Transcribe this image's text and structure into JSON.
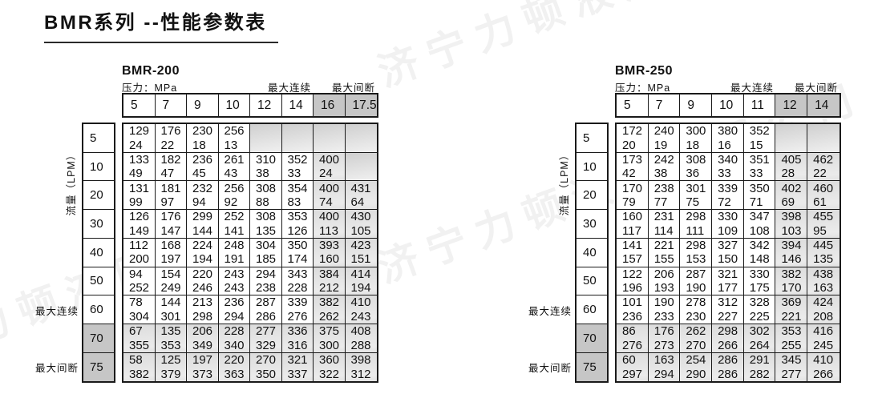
{
  "page_title": "BMR系列 --性能参数表",
  "watermark_text": "济宁力顿液压有限公司",
  "colors": {
    "border": "#1a1a1a",
    "shaded_header": "#c6c6c6",
    "shaded_cell_top": "#cfcfcf",
    "shaded_cell_bottom": "#ededed"
  },
  "tables": [
    {
      "model": "BMR-200",
      "pressure_label": "压力：MPa",
      "max_continuous_label": "最大连续",
      "max_intermittent_label": "最大间断",
      "flow_axis_label": "流量（LPM）",
      "side_max_continuous_label": "最大连续",
      "side_max_intermittent_label": "最大间断",
      "pressure_columns": [
        "5",
        "7",
        "9",
        "10",
        "12",
        "14",
        "16",
        "17.5"
      ],
      "shaded_column_indices": [
        6,
        7
      ],
      "flow_rows": [
        "5",
        "10",
        "20",
        "30",
        "40",
        "50",
        "60",
        "70",
        "75"
      ],
      "shaded_row_indices": [
        7,
        8
      ],
      "cells": [
        [
          [
            "129",
            "24"
          ],
          [
            "176",
            "22"
          ],
          [
            "230",
            "18"
          ],
          [
            "256",
            "13"
          ],
          null,
          null,
          null,
          null
        ],
        [
          [
            "133",
            "49"
          ],
          [
            "182",
            "47"
          ],
          [
            "236",
            "45"
          ],
          [
            "261",
            "43"
          ],
          [
            "310",
            "38"
          ],
          [
            "352",
            "33"
          ],
          [
            "400",
            "24"
          ],
          null
        ],
        [
          [
            "131",
            "99"
          ],
          [
            "181",
            "97"
          ],
          [
            "232",
            "94"
          ],
          [
            "256",
            "92"
          ],
          [
            "308",
            "88"
          ],
          [
            "354",
            "83"
          ],
          [
            "400",
            "74"
          ],
          [
            "431",
            "64"
          ]
        ],
        [
          [
            "126",
            "149"
          ],
          [
            "176",
            "147"
          ],
          [
            "299",
            "144"
          ],
          [
            "252",
            "141"
          ],
          [
            "308",
            "135"
          ],
          [
            "353",
            "126"
          ],
          [
            "400",
            "113"
          ],
          [
            "430",
            "105"
          ]
        ],
        [
          [
            "112",
            "200"
          ],
          [
            "168",
            "197"
          ],
          [
            "224",
            "194"
          ],
          [
            "248",
            "191"
          ],
          [
            "304",
            "185"
          ],
          [
            "350",
            "174"
          ],
          [
            "393",
            "160"
          ],
          [
            "423",
            "151"
          ]
        ],
        [
          [
            "94",
            "252"
          ],
          [
            "154",
            "249"
          ],
          [
            "220",
            "246"
          ],
          [
            "243",
            "243"
          ],
          [
            "294",
            "238"
          ],
          [
            "343",
            "228"
          ],
          [
            "384",
            "212"
          ],
          [
            "414",
            "194"
          ]
        ],
        [
          [
            "78",
            "304"
          ],
          [
            "144",
            "301"
          ],
          [
            "213",
            "298"
          ],
          [
            "236",
            "294"
          ],
          [
            "287",
            "286"
          ],
          [
            "339",
            "276"
          ],
          [
            "382",
            "262"
          ],
          [
            "410",
            "243"
          ]
        ],
        [
          [
            "67",
            "355"
          ],
          [
            "135",
            "353"
          ],
          [
            "206",
            "349"
          ],
          [
            "228",
            "340"
          ],
          [
            "277",
            "329"
          ],
          [
            "336",
            "316"
          ],
          [
            "375",
            "300"
          ],
          [
            "408",
            "288"
          ]
        ],
        [
          [
            "58",
            "382"
          ],
          [
            "125",
            "379"
          ],
          [
            "197",
            "373"
          ],
          [
            "220",
            "363"
          ],
          [
            "270",
            "350"
          ],
          [
            "321",
            "337"
          ],
          [
            "360",
            "322"
          ],
          [
            "398",
            "312"
          ]
        ]
      ]
    },
    {
      "model": "BMR-250",
      "pressure_label": "压力：MPa",
      "max_continuous_label": "最大连续",
      "max_intermittent_label": "最大间断",
      "flow_axis_label": "流量（LPM）",
      "side_max_continuous_label": "最大连续",
      "side_max_intermittent_label": "最大间断",
      "pressure_columns": [
        "5",
        "7",
        "9",
        "10",
        "11",
        "12",
        "14"
      ],
      "shaded_column_indices": [
        5,
        6
      ],
      "flow_rows": [
        "5",
        "10",
        "20",
        "30",
        "40",
        "50",
        "60",
        "70",
        "75"
      ],
      "shaded_row_indices": [
        7,
        8
      ],
      "cells": [
        [
          [
            "172",
            "20"
          ],
          [
            "240",
            "19"
          ],
          [
            "300",
            "18"
          ],
          [
            "380",
            "16"
          ],
          [
            "352",
            "15"
          ],
          null,
          null
        ],
        [
          [
            "173",
            "42"
          ],
          [
            "242",
            "38"
          ],
          [
            "308",
            "36"
          ],
          [
            "340",
            "33"
          ],
          [
            "351",
            "33"
          ],
          [
            "405",
            "28"
          ],
          [
            "462",
            "22"
          ]
        ],
        [
          [
            "170",
            "79"
          ],
          [
            "238",
            "77"
          ],
          [
            "301",
            "75"
          ],
          [
            "339",
            "72"
          ],
          [
            "350",
            "71"
          ],
          [
            "402",
            "69"
          ],
          [
            "460",
            "61"
          ]
        ],
        [
          [
            "160",
            "117"
          ],
          [
            "231",
            "114"
          ],
          [
            "298",
            "111"
          ],
          [
            "330",
            "109"
          ],
          [
            "347",
            "108"
          ],
          [
            "398",
            "103"
          ],
          [
            "455",
            "95"
          ]
        ],
        [
          [
            "141",
            "157"
          ],
          [
            "221",
            "155"
          ],
          [
            "298",
            "153"
          ],
          [
            "327",
            "150"
          ],
          [
            "342",
            "148"
          ],
          [
            "394",
            "146"
          ],
          [
            "445",
            "135"
          ]
        ],
        [
          [
            "122",
            "196"
          ],
          [
            "206",
            "193"
          ],
          [
            "287",
            "190"
          ],
          [
            "321",
            "177"
          ],
          [
            "330",
            "175"
          ],
          [
            "382",
            "170"
          ],
          [
            "438",
            "163"
          ]
        ],
        [
          [
            "101",
            "236"
          ],
          [
            "190",
            "233"
          ],
          [
            "278",
            "230"
          ],
          [
            "312",
            "227"
          ],
          [
            "328",
            "225"
          ],
          [
            "369",
            "221"
          ],
          [
            "424",
            "208"
          ]
        ],
        [
          [
            "86",
            "276"
          ],
          [
            "176",
            "273"
          ],
          [
            "262",
            "270"
          ],
          [
            "298",
            "266"
          ],
          [
            "302",
            "264"
          ],
          [
            "353",
            "255"
          ],
          [
            "416",
            "245"
          ]
        ],
        [
          [
            "60",
            "297"
          ],
          [
            "163",
            "294"
          ],
          [
            "254",
            "290"
          ],
          [
            "286",
            "286"
          ],
          [
            "291",
            "282"
          ],
          [
            "345",
            "277"
          ],
          [
            "410",
            "266"
          ]
        ]
      ]
    }
  ]
}
